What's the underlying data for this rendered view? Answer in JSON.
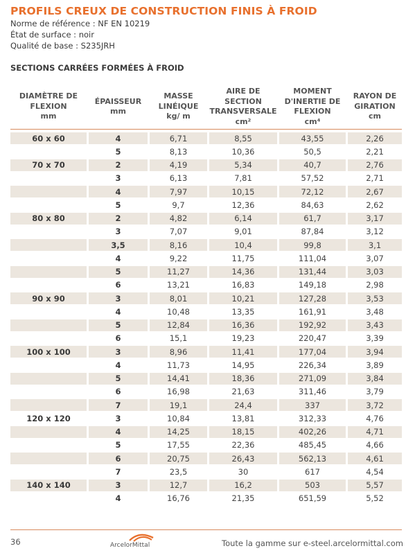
{
  "header": {
    "title": "PROFILS CREUX DE CONSTRUCTION FINIS À FROID",
    "norme": "Norme de référence : NF EN 10219",
    "etat": "État de surface : noir",
    "qualite": "Qualité de base : S235JRH",
    "section_title": "SECTIONS CARRÉES FORMÉES À FROID"
  },
  "table": {
    "columns": [
      {
        "l1": "DIAMÈTRE DE",
        "l2": "FLEXION",
        "l3": "",
        "l4": "mm"
      },
      {
        "l1": "",
        "l2": "ÉPAISSEUR",
        "l3": "mm",
        "l4": ""
      },
      {
        "l1": "MASSE",
        "l2": "LINÉIQUE",
        "l3": "kg/ m",
        "l4": ""
      },
      {
        "l1": "AIRE DE",
        "l2": "SECTION",
        "l3": "TRANSVERSALE",
        "l4": "cm²"
      },
      {
        "l1": "MOMENT",
        "l2": "D'INERTIE DE",
        "l3": "FLEXION",
        "l4": "cm⁴"
      },
      {
        "l1": "RAYON DE",
        "l2": "GIRATION",
        "l3": "cm",
        "l4": ""
      }
    ],
    "rows": [
      [
        "60 x 60",
        "4",
        "6,71",
        "8,55",
        "43,55",
        "2,26"
      ],
      [
        "",
        "5",
        "8,13",
        "10,36",
        "50,5",
        "2,21"
      ],
      [
        "70 x 70",
        "2",
        "4,19",
        "5,34",
        "40,7",
        "2,76"
      ],
      [
        "",
        "3",
        "6,13",
        "7,81",
        "57,52",
        "2,71"
      ],
      [
        "",
        "4",
        "7,97",
        "10,15",
        "72,12",
        "2,67"
      ],
      [
        "",
        "5",
        "9,7",
        "12,36",
        "84,63",
        "2,62"
      ],
      [
        "80 x 80",
        "2",
        "4,82",
        "6,14",
        "61,7",
        "3,17"
      ],
      [
        "",
        "3",
        "7,07",
        "9,01",
        "87,84",
        "3,12"
      ],
      [
        "",
        "3,5",
        "8,16",
        "10,4",
        "99,8",
        "3,1"
      ],
      [
        "",
        "4",
        "9,22",
        "11,75",
        "111,04",
        "3,07"
      ],
      [
        "",
        "5",
        "11,27",
        "14,36",
        "131,44",
        "3,03"
      ],
      [
        "",
        "6",
        "13,21",
        "16,83",
        "149,18",
        "2,98"
      ],
      [
        "90 x 90",
        "3",
        "8,01",
        "10,21",
        "127,28",
        "3,53"
      ],
      [
        "",
        "4",
        "10,48",
        "13,35",
        "161,91",
        "3,48"
      ],
      [
        "",
        "5",
        "12,84",
        "16,36",
        "192,92",
        "3,43"
      ],
      [
        "",
        "6",
        "15,1",
        "19,23",
        "220,47",
        "3,39"
      ],
      [
        "100 x 100",
        "3",
        "8,96",
        "11,41",
        "177,04",
        "3,94"
      ],
      [
        "",
        "4",
        "11,73",
        "14,95",
        "226,34",
        "3,89"
      ],
      [
        "",
        "5",
        "14,41",
        "18,36",
        "271,09",
        "3,84"
      ],
      [
        "",
        "6",
        "16,98",
        "21,63",
        "311,46",
        "3,79"
      ],
      [
        "",
        "7",
        "19,1",
        "24,4",
        "337",
        "3,72"
      ],
      [
        "120 x 120",
        "3",
        "10,84",
        "13,81",
        "312,33",
        "4,76"
      ],
      [
        "",
        "4",
        "14,25",
        "18,15",
        "402,26",
        "4,71"
      ],
      [
        "",
        "5",
        "17,55",
        "22,36",
        "485,45",
        "4,66"
      ],
      [
        "",
        "6",
        "20,75",
        "26,43",
        "562,13",
        "4,61"
      ],
      [
        "",
        "7",
        "23,5",
        "30",
        "617",
        "4,54"
      ],
      [
        "140 x 140",
        "3",
        "12,7",
        "16,2",
        "503",
        "5,57"
      ],
      [
        "",
        "4",
        "16,76",
        "21,35",
        "651,59",
        "5,52"
      ]
    ]
  },
  "footer": {
    "page_number": "36",
    "logo_text": "ArcelorMittal",
    "link_text": "Toute la gamme sur e-steel.arcelormittal.com",
    "accent": "#e8702d"
  }
}
